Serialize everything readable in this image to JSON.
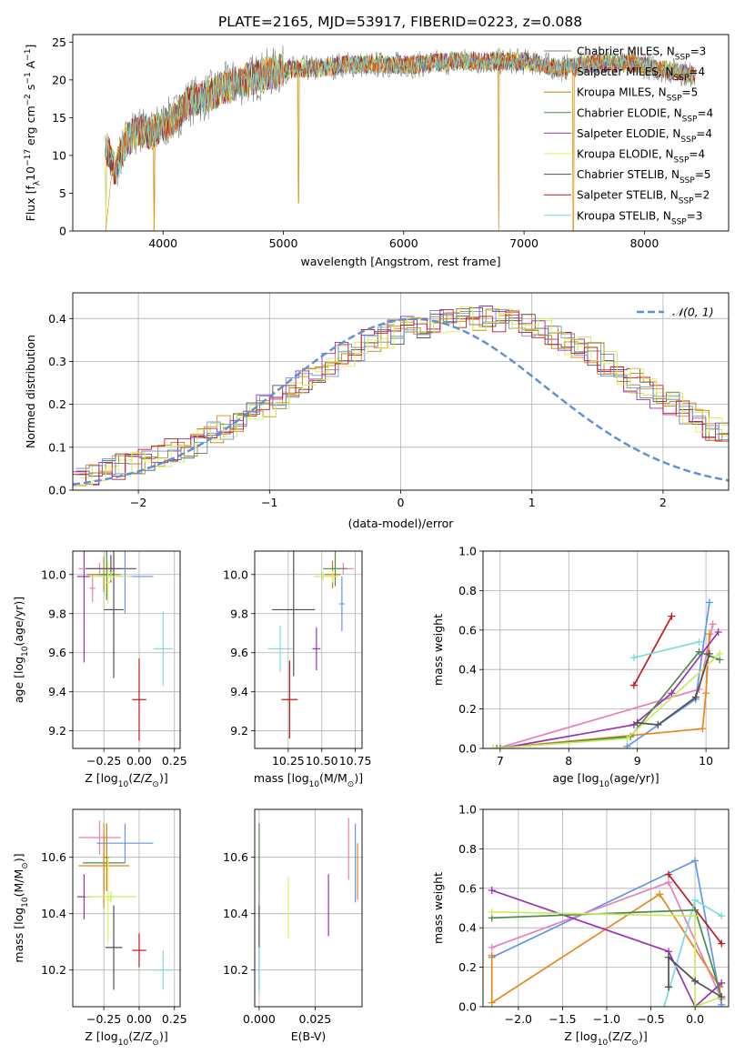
{
  "figure_title": "PLATE=2165, MJD=53917, FIBERID=0223, z=0.088",
  "colors": [
    "#808080",
    "#e8851f",
    "#b8860b",
    "#4c8c4c",
    "#9b30b0",
    "#e6ec50",
    "#505050",
    "#c01818",
    "#7adcdc",
    "#6495ed",
    "#e880b8",
    "#c8ec60"
  ],
  "chart_data": [
    {
      "id": "spectrum",
      "type": "line",
      "title": "PLATE=2165, MJD=53917, FIBERID=0223, z=0.088",
      "xlabel": "wavelength [Angstrom, rest frame]",
      "ylabel_parts": [
        "Flux [f",
        "λ",
        "10",
        "−17",
        " erg cm",
        "−2",
        " s",
        "−1",
        " A",
        "−1",
        "]"
      ],
      "xlim": [
        3250,
        8700
      ],
      "ylim": [
        0,
        26
      ],
      "xticks": [
        4000,
        5000,
        6000,
        7000,
        8000
      ],
      "yticks": [
        0,
        5,
        10,
        15,
        20,
        25
      ],
      "grid": false,
      "legend_position": "top-right",
      "series": [
        {
          "name": "Chabrier MILES",
          "nssp": "3",
          "color": "#808080"
        },
        {
          "name": "Salpeter MILES",
          "nssp": "4",
          "color": "#e8851f"
        },
        {
          "name": "Kroupa MILES",
          "nssp": "5",
          "color": "#b8860b"
        },
        {
          "name": "Chabrier ELODIE",
          "nssp": "4",
          "color": "#4c8c4c"
        },
        {
          "name": "Salpeter ELODIE",
          "nssp": "4",
          "color": "#9b30b0"
        },
        {
          "name": "Kroupa ELODIE",
          "nssp": "4",
          "color": "#e6ec50"
        },
        {
          "name": "Chabrier STELIB",
          "nssp": "5",
          "color": "#505050"
        },
        {
          "name": "Salpeter STELIB",
          "nssp": "2",
          "color": "#c01818"
        },
        {
          "name": "Kroupa STELIB",
          "nssp": "3",
          "color": "#7adcdc"
        }
      ],
      "envelope": {
        "x": [
          3520,
          3600,
          3700,
          3800,
          3900,
          4000,
          4100,
          4200,
          4300,
          4400,
          4500,
          4700,
          4900,
          5100,
          5300,
          5500,
          5700,
          5900,
          6100,
          6300,
          6500,
          6700,
          6900,
          7100,
          7300,
          7500,
          7700,
          7900,
          8100,
          8300,
          8430
        ],
        "y": [
          11.5,
          8,
          12,
          13.5,
          13,
          14,
          15,
          17,
          17.5,
          18,
          19,
          20,
          21,
          21.5,
          21.5,
          22,
          22,
          22,
          22,
          22.3,
          22.5,
          22.4,
          22.5,
          22.3,
          21.5,
          22,
          22.3,
          22.2,
          21.5,
          21,
          20.5
        ]
      },
      "dips": [
        {
          "x": 3525,
          "y": 0
        },
        {
          "x": 3925,
          "y": 0
        },
        {
          "x": 5125,
          "y": 3.7
        },
        {
          "x": 6790,
          "y": 0
        },
        {
          "x": 7410,
          "y": 0
        }
      ]
    },
    {
      "id": "residual-histogram",
      "type": "step",
      "xlabel": "(data-model)/error",
      "ylabel": "Normed distribution",
      "xlim": [
        -2.5,
        2.5
      ],
      "ylim": [
        0,
        0.46
      ],
      "xticks": [
        -2,
        -1,
        0,
        1,
        2
      ],
      "xtick_labels": [
        "−2",
        "−1",
        "0",
        "1",
        "2"
      ],
      "yticks": [
        0.0,
        0.1,
        0.2,
        0.3,
        0.4
      ],
      "grid": true,
      "legend_position": "top-right",
      "legend": [
        {
          "name": "𝒩(0, 1)",
          "color": "#5b8fd6",
          "dashed": true
        }
      ],
      "bin_width": 0.1,
      "bins_start": -2.5,
      "model_hist": [
        0.03,
        0.04,
        0.045,
        0.055,
        0.06,
        0.07,
        0.08,
        0.09,
        0.1,
        0.115,
        0.13,
        0.145,
        0.16,
        0.18,
        0.2,
        0.215,
        0.235,
        0.255,
        0.275,
        0.295,
        0.315,
        0.33,
        0.345,
        0.36,
        0.37,
        0.38,
        0.385,
        0.39,
        0.395,
        0.4,
        0.4,
        0.4,
        0.395,
        0.39,
        0.38,
        0.37,
        0.36,
        0.345,
        0.33,
        0.315,
        0.295,
        0.275,
        0.255,
        0.235,
        0.215,
        0.2,
        0.18,
        0.16,
        0.145,
        0.13
      ],
      "gaussian_mu": 0.1,
      "gaussian_sigma": 1.0
    },
    {
      "id": "age-vs-z",
      "type": "errorbar",
      "xlabel_parts": [
        "Z [log",
        "10",
        "(Z/Z",
        "⊙",
        ")]"
      ],
      "ylabel_parts": [
        "age  [log",
        "10",
        "(age/yr)]"
      ],
      "xlim": [
        -0.47,
        0.29
      ],
      "ylim": [
        9.11,
        10.12
      ],
      "xticks": [
        -0.25,
        0.0,
        0.25
      ],
      "xtick_labels": [
        "−0.25",
        "0.00",
        "0.25"
      ],
      "yticks": [
        9.2,
        9.4,
        9.6,
        9.8,
        10.0
      ],
      "ytick_labels": [
        "9.2",
        "9.4",
        "9.6",
        "9.8",
        "10.0"
      ],
      "grid": true,
      "points": [
        {
          "x": -0.39,
          "y": 9.99,
          "xe": 0.05,
          "ye": 0.44,
          "color": "#9b30b0"
        },
        {
          "x": -0.33,
          "y": 9.93,
          "xe": 0.02,
          "ye": 0.07,
          "color": "#e880b8"
        },
        {
          "x": -0.28,
          "y": 10.03,
          "xe": 0.15,
          "ye": 0.03,
          "color": "#e880b8"
        },
        {
          "x": -0.25,
          "y": 10.0,
          "xe": 0.12,
          "ye": 0.09,
          "color": "#b8860b"
        },
        {
          "x": -0.23,
          "y": 10.0,
          "xe": 0.05,
          "ye": 0.13,
          "color": "#4c8c4c"
        },
        {
          "x": -0.22,
          "y": 9.96,
          "xe": 0.02,
          "ye": 0.11,
          "color": "#e6ec50"
        },
        {
          "x": -0.2,
          "y": 10.03,
          "xe": 0.18,
          "ye": 0.07,
          "color": "#505050"
        },
        {
          "x": -0.18,
          "y": 9.82,
          "xe": 0.07,
          "ye": 0.35,
          "color": "#505050"
        },
        {
          "x": -0.1,
          "y": 9.99,
          "xe": 0.2,
          "ye": 0.19,
          "color": "#6495ed"
        },
        {
          "x": -0.2,
          "y": 9.99,
          "xe": 0.15,
          "ye": 0.02,
          "color": "#c8ec60"
        },
        {
          "x": 0.0,
          "y": 9.36,
          "xe": 0.05,
          "ye": 0.21,
          "color": "#c01818"
        },
        {
          "x": 0.17,
          "y": 9.62,
          "xe": 0.07,
          "ye": 0.19,
          "color": "#7adcdc"
        }
      ]
    },
    {
      "id": "age-vs-mass",
      "type": "errorbar",
      "xlabel_parts": [
        "mass [log",
        "10",
        "(M/M",
        "⊙",
        ")]"
      ],
      "ylabel_parts": [],
      "xlim": [
        10.0,
        10.8
      ],
      "ylim": [
        9.11,
        10.12
      ],
      "xticks": [
        10.25,
        10.5,
        10.75
      ],
      "xtick_labels": [
        "10.25",
        "10.50",
        "10.75"
      ],
      "yticks": [
        9.2,
        9.4,
        9.6,
        9.8,
        10.0
      ],
      "ytick_labels": [
        "9.2",
        "9.4",
        "9.6",
        "9.8",
        "10.0"
      ],
      "grid": true,
      "points": [
        {
          "x": 10.46,
          "y": 9.62,
          "xe": 0.03,
          "ye": 0.11,
          "color": "#9b30b0"
        },
        {
          "x": 10.66,
          "y": 10.03,
          "xe": 0.08,
          "ye": 0.03,
          "color": "#e880b8"
        },
        {
          "x": 10.58,
          "y": 10.0,
          "xe": 0.06,
          "ye": 0.07,
          "color": "#b8860b"
        },
        {
          "x": 10.6,
          "y": 10.03,
          "xe": 0.09,
          "ye": 0.09,
          "color": "#4c8c4c"
        },
        {
          "x": 10.58,
          "y": 9.99,
          "xe": 0.04,
          "ye": 0.03,
          "color": "#e6ec50"
        },
        {
          "x": 10.51,
          "y": 9.99,
          "xe": 0.07,
          "ye": 0.02,
          "color": "#c8ec60"
        },
        {
          "x": 10.29,
          "y": 9.82,
          "xe": 0.16,
          "ye": 0.34,
          "color": "#505050"
        },
        {
          "x": 10.65,
          "y": 9.85,
          "xe": 0.02,
          "ye": 0.14,
          "color": "#6495ed"
        },
        {
          "x": 10.26,
          "y": 9.36,
          "xe": 0.06,
          "ye": 0.2,
          "color": "#c01818"
        },
        {
          "x": 10.19,
          "y": 9.62,
          "xe": 0.09,
          "ye": 0.12,
          "color": "#7adcdc"
        }
      ]
    },
    {
      "id": "weight-vs-age",
      "type": "line",
      "xlabel_parts": [
        "age  [log",
        "10",
        "(age/yr)]"
      ],
      "ylabel": "mass weight",
      "xlim": [
        6.75,
        10.33
      ],
      "ylim": [
        0,
        1
      ],
      "xticks": [
        7,
        8,
        9,
        10
      ],
      "xtick_labels": [
        "7",
        "8",
        "9",
        "10"
      ],
      "yticks": [
        0.0,
        0.2,
        0.4,
        0.6,
        0.8,
        1.0
      ],
      "ytick_labels": [
        "0.0",
        "0.2",
        "0.4",
        "0.6",
        "0.8",
        "1.0"
      ],
      "grid": true,
      "series": [
        {
          "color": "#6495ed",
          "x": [
            8.85,
            9.85,
            10.05
          ],
          "y": [
            0.01,
            0.25,
            0.74
          ]
        },
        {
          "color": "#e880b8",
          "x": [
            6.95,
            9.9,
            10.1
          ],
          "y": [
            0.0,
            0.3,
            0.63
          ]
        },
        {
          "color": "#e8851f",
          "x": [
            6.9,
            9.95,
            10.0,
            10.05
          ],
          "y": [
            0.0,
            0.1,
            0.28,
            0.58
          ]
        },
        {
          "color": "#9b30b0",
          "x": [
            7.0,
            8.95,
            9.5,
            10.18
          ],
          "y": [
            0.0,
            0.12,
            0.28,
            0.59
          ]
        },
        {
          "color": "#c01818",
          "x": [
            8.95,
            9.5
          ],
          "y": [
            0.32,
            0.67
          ]
        },
        {
          "color": "#7adcdc",
          "x": [
            8.95,
            9.9
          ],
          "y": [
            0.46,
            0.54
          ]
        },
        {
          "color": "#4c8c4c",
          "x": [
            6.95,
            8.9,
            9.9,
            10.2
          ],
          "y": [
            0.0,
            0.06,
            0.49,
            0.45
          ]
        },
        {
          "color": "#c8ec60",
          "x": [
            6.9,
            8.85,
            10.2
          ],
          "y": [
            0.0,
            0.05,
            0.48
          ]
        },
        {
          "color": "#505050",
          "x": [
            9.0,
            9.3,
            9.85,
            10.05
          ],
          "y": [
            0.13,
            0.12,
            0.26,
            0.48
          ]
        }
      ]
    },
    {
      "id": "mass-vs-z",
      "type": "errorbar",
      "xlabel_parts": [
        "Z [log",
        "10",
        "(Z/Z",
        "⊙",
        ")]"
      ],
      "ylabel_parts": [
        "mass [log",
        "10",
        "(M/M",
        "⊙",
        ")]"
      ],
      "xlim": [
        -0.47,
        0.29
      ],
      "ylim": [
        10.07,
        10.77
      ],
      "xticks": [
        -0.25,
        0.0,
        0.25
      ],
      "xtick_labels": [
        "−0.25",
        "0.00",
        "0.25"
      ],
      "yticks": [
        10.2,
        10.4,
        10.6
      ],
      "ytick_labels": [
        "10.2",
        "10.4",
        "10.6"
      ],
      "grid": true,
      "points": [
        {
          "x": -0.28,
          "y": 10.67,
          "xe": 0.15,
          "ye": 0.06,
          "color": "#e880b8"
        },
        {
          "x": -0.1,
          "y": 10.65,
          "xe": 0.2,
          "ye": 0.07,
          "color": "#6495ed"
        },
        {
          "x": -0.25,
          "y": 10.58,
          "xe": 0.15,
          "ye": 0.1,
          "color": "#4c8c4c"
        },
        {
          "x": -0.25,
          "y": 10.57,
          "xe": 0.18,
          "ye": 0.15,
          "color": "#e8851f"
        },
        {
          "x": -0.23,
          "y": 10.6,
          "xe": 0.02,
          "ye": 0.12,
          "color": "#b8860b"
        },
        {
          "x": -0.22,
          "y": 10.45,
          "xe": 0.02,
          "ye": 0.15,
          "color": "#e6ec50"
        },
        {
          "x": -0.39,
          "y": 10.46,
          "xe": 0.05,
          "ye": 0.08,
          "color": "#9b30b0"
        },
        {
          "x": -0.2,
          "y": 10.46,
          "xe": 0.18,
          "ye": 0.02,
          "color": "#c8ec60"
        },
        {
          "x": -0.18,
          "y": 10.28,
          "xe": 0.06,
          "ye": 0.15,
          "color": "#505050"
        },
        {
          "x": 0.0,
          "y": 10.27,
          "xe": 0.05,
          "ye": 0.06,
          "color": "#c01818"
        },
        {
          "x": 0.17,
          "y": 10.2,
          "xe": 0.07,
          "ye": 0.07,
          "color": "#7adcdc"
        }
      ]
    },
    {
      "id": "mass-vs-ebv",
      "type": "errorbar",
      "xlabel_parts": [
        "E(B-V)"
      ],
      "ylabel_parts": [],
      "xlim": [
        -0.002,
        0.046
      ],
      "ylim": [
        10.07,
        10.77
      ],
      "xticks": [
        0.0,
        0.025
      ],
      "xtick_labels": [
        "0.000",
        "0.025"
      ],
      "yticks": [
        10.2,
        10.4,
        10.6
      ],
      "ytick_labels": [
        "10.2",
        "10.4",
        "10.6"
      ],
      "grid": true,
      "points": [
        {
          "x": 0.0,
          "y": 10.6,
          "xe": 0,
          "ye": 0.12,
          "color": "#4c8c4c"
        },
        {
          "x": 0.0,
          "y": 10.44,
          "xe": 0,
          "ye": 0.06,
          "color": "#808080"
        },
        {
          "x": 0.0,
          "y": 10.28,
          "xe": 0,
          "ye": 0.15,
          "color": "#505050"
        },
        {
          "x": 0.0,
          "y": 10.2,
          "xe": 0,
          "ye": 0.08,
          "color": "#7adcdc"
        },
        {
          "x": 0.013,
          "y": 10.42,
          "xe": 0,
          "ye": 0.11,
          "color": "#e6ec50"
        },
        {
          "x": 0.031,
          "y": 10.43,
          "xe": 0,
          "ye": 0.11,
          "color": "#9b30b0"
        },
        {
          "x": 0.04,
          "y": 10.63,
          "xe": 0,
          "ye": 0.11,
          "color": "#e880b8"
        },
        {
          "x": 0.043,
          "y": 10.58,
          "xe": 0,
          "ye": 0.14,
          "color": "#6495ed"
        },
        {
          "x": 0.044,
          "y": 10.55,
          "xe": 0,
          "ye": 0.1,
          "color": "#e8851f"
        }
      ]
    },
    {
      "id": "weight-vs-z",
      "type": "line",
      "xlabel_parts": [
        "Z [log",
        "10",
        "(Z/Z",
        "⊙",
        ")]"
      ],
      "ylabel": "mass weight",
      "xlim": [
        -2.4,
        0.38
      ],
      "ylim": [
        0,
        1
      ],
      "xticks": [
        -2.0,
        -1.5,
        -1.0,
        -0.5,
        0.0
      ],
      "xtick_labels": [
        "−2.0",
        "−1.5",
        "−1.0",
        "−0.5",
        "0.0"
      ],
      "yticks": [
        0.0,
        0.2,
        0.4,
        0.6,
        0.8,
        1.0
      ],
      "ytick_labels": [
        "0.0",
        "0.2",
        "0.4",
        "0.6",
        "0.8",
        "1.0"
      ],
      "grid": true,
      "series": [
        {
          "color": "#6495ed",
          "x": [
            -2.3,
            0.0,
            0.3
          ],
          "y": [
            0.25,
            0.74,
            0.01
          ]
        },
        {
          "color": "#e880b8",
          "x": [
            -2.3,
            -0.3,
            0.3
          ],
          "y": [
            0.3,
            0.63,
            0.04
          ]
        },
        {
          "color": "#e8851f",
          "x": [
            -2.3,
            -2.3,
            -0.4,
            0.28
          ],
          "y": [
            0.26,
            0.02,
            0.57,
            0.1
          ]
        },
        {
          "color": "#9b30b0",
          "x": [
            -2.3,
            -0.3,
            0.0,
            0.3
          ],
          "y": [
            0.59,
            0.28,
            0.0,
            0.12
          ]
        },
        {
          "color": "#c01818",
          "x": [
            -0.3,
            0.3
          ],
          "y": [
            0.67,
            0.32
          ]
        },
        {
          "color": "#7adcdc",
          "x": [
            -0.35,
            0.0,
            0.3
          ],
          "y": [
            0.0,
            0.54,
            0.46
          ]
        },
        {
          "color": "#4c8c4c",
          "x": [
            -2.3,
            0.0,
            0.3
          ],
          "y": [
            0.45,
            0.49,
            0.05
          ]
        },
        {
          "color": "#c8ec60",
          "x": [
            -2.3,
            0.0,
            0.0,
            0.3
          ],
          "y": [
            0.48,
            0.46,
            0.0,
            0.05
          ]
        },
        {
          "color": "#505050",
          "x": [
            -0.3,
            -0.3,
            0.0,
            0.3
          ],
          "y": [
            0.1,
            0.25,
            0.13,
            0.05
          ]
        }
      ]
    }
  ]
}
